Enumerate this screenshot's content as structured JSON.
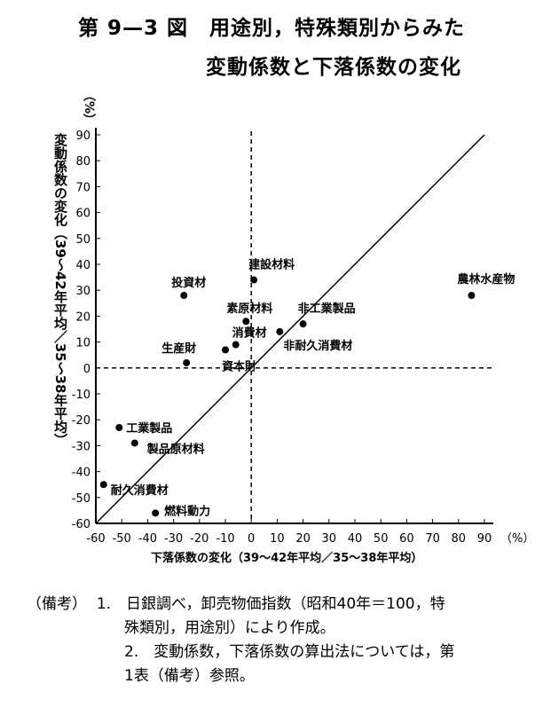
{
  "title_line1": "第 9—3 図　用途別，特殊類別からみた",
  "title_line2": "変動係数と下落係数の変化",
  "chart_data": {
    "type": "scatter",
    "title": "用途別，特殊類別からみた変動係数と下落係数の変化",
    "xlabel": "下落係数の変化（39～42年平均／35～38年平均）",
    "ylabel": "変動係数の変化（39～42年平均／35～38年平均）",
    "x_unit": "（%）",
    "y_unit": "（%）",
    "xlim": [
      -60,
      90
    ],
    "ylim": [
      -60,
      90
    ],
    "xticks": [
      -60,
      -50,
      -40,
      -30,
      -20,
      -10,
      0,
      10,
      20,
      30,
      40,
      50,
      60,
      70,
      80,
      90
    ],
    "yticks": [
      90,
      80,
      70,
      60,
      50,
      40,
      30,
      20,
      10,
      0,
      -10,
      -20,
      -30,
      -40,
      -50,
      -60
    ],
    "reference_lines": [
      "x=0 dashed",
      "y=0 dashed",
      "y=x solid"
    ],
    "grid": false,
    "points": [
      {
        "label": "投資材",
        "x": -26,
        "y": 28
      },
      {
        "label": "建設材料",
        "x": 1,
        "y": 34
      },
      {
        "label": "素原材料",
        "x": -2,
        "y": 18
      },
      {
        "label": "消費材",
        "x": -6,
        "y": 9
      },
      {
        "label": "資本財",
        "x": -10,
        "y": 7
      },
      {
        "label": "生産財",
        "x": -25,
        "y": 2
      },
      {
        "label": "非耐久消費材",
        "x": 11,
        "y": 14
      },
      {
        "label": "非工業製品",
        "x": 20,
        "y": 17
      },
      {
        "label": "農林水産物",
        "x": 85,
        "y": 28
      },
      {
        "label": "工業製品",
        "x": -51,
        "y": -23
      },
      {
        "label": "製品原材料",
        "x": -45,
        "y": -29
      },
      {
        "label": "耐久消費材",
        "x": -57,
        "y": -45
      },
      {
        "label": "燃料動力",
        "x": -37,
        "y": -56
      }
    ]
  },
  "notes": {
    "heading": "（備考）",
    "items": [
      "1.　日銀調べ，卸売物価指数（昭和40年＝100，特",
      "殊類別，用途別）により作成。",
      "2.　変動係数，下落係数の算出法については，第",
      "1表（備考）参照。"
    ]
  }
}
